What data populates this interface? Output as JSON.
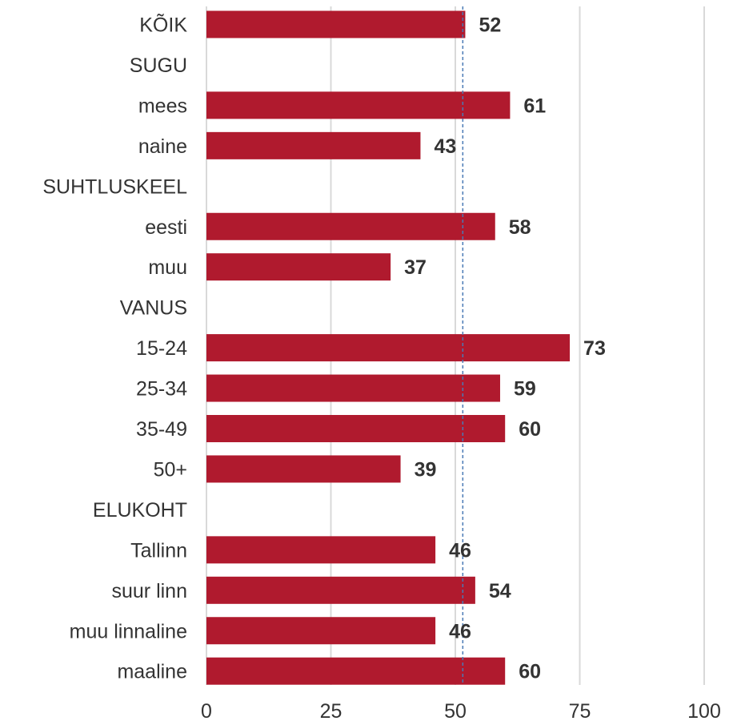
{
  "chart_data": {
    "type": "bar",
    "orientation": "horizontal",
    "categories": [
      "KÕIK",
      "SUGU",
      "mees",
      "naine",
      "SUHTLUSKEEL",
      "eesti",
      "muu",
      "VANUS",
      "15-24",
      "25-34",
      "35-49",
      "50+",
      "ELUKOHT",
      "Tallinn",
      "suur linn",
      "muu linnaline",
      "maaline"
    ],
    "values": [
      52,
      null,
      61,
      43,
      null,
      58,
      37,
      null,
      73,
      59,
      60,
      39,
      null,
      46,
      54,
      46,
      60
    ],
    "data_labels": [
      "52",
      "",
      "61",
      "43",
      "",
      "58",
      "37",
      "",
      "73",
      "59",
      "60",
      "39",
      "",
      "46",
      "54",
      "46",
      "60"
    ],
    "xlim": [
      0,
      100
    ],
    "x_ticks": [
      0,
      25,
      50,
      75,
      100
    ],
    "reference_line": 51.5,
    "grid": true,
    "legend": "none",
    "colors": {
      "bar": "#b01a2e",
      "grid": "#d9d9d9",
      "reference": "#4a7ab5",
      "text": "#333333"
    }
  }
}
